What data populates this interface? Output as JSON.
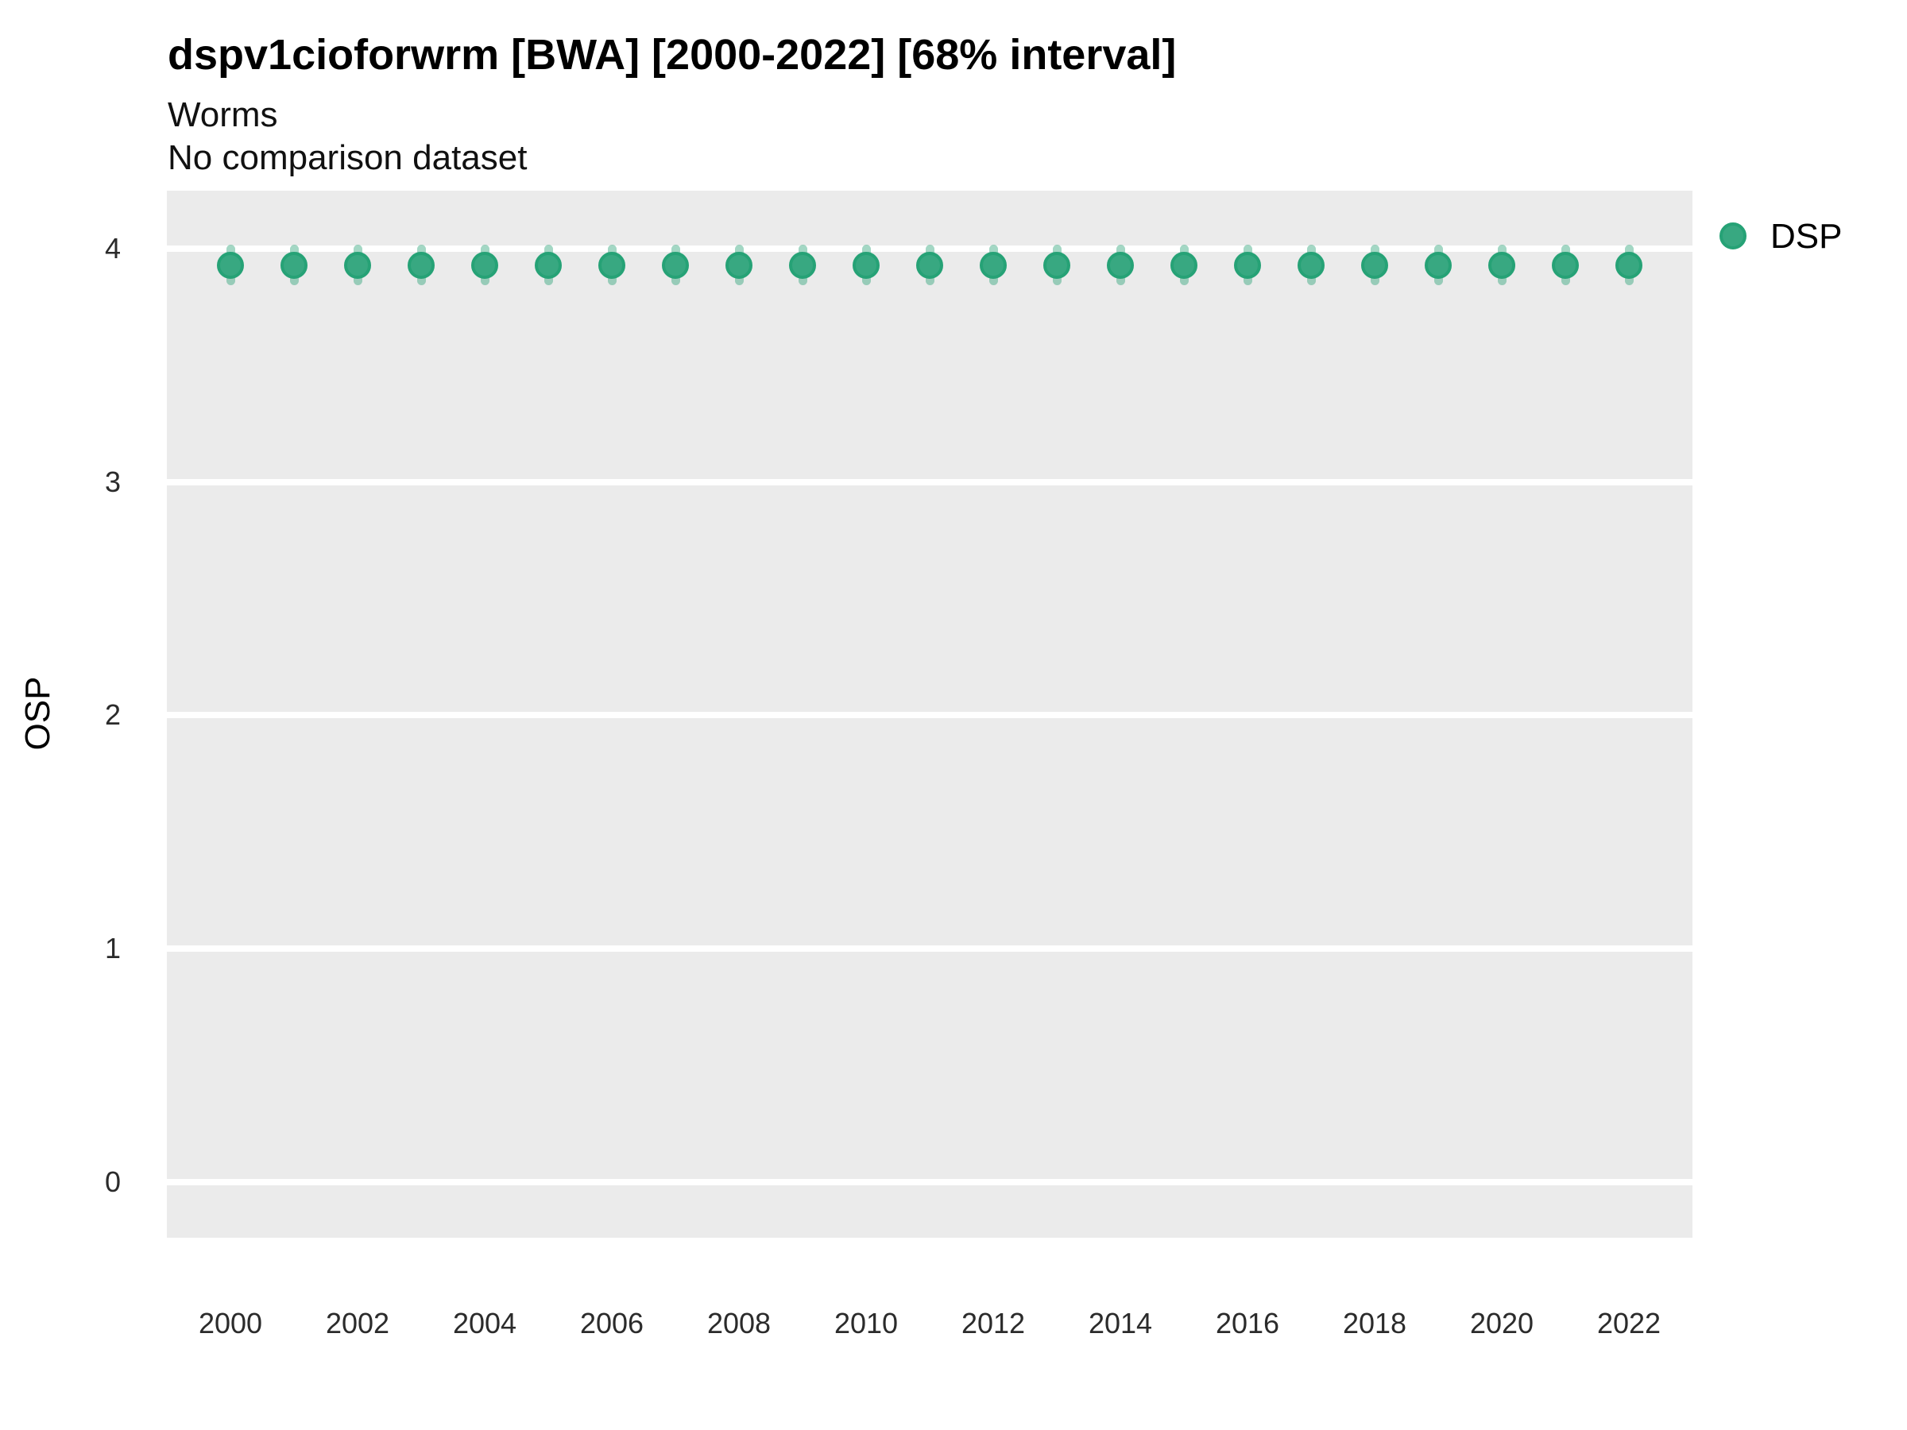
{
  "header": {
    "title": "dspv1cioforwrm [BWA] [2000-2022] [68% interval]",
    "subtitle": "Worms",
    "comparison_note": "No comparison dataset"
  },
  "chart_data": {
    "type": "scatter",
    "title": "dspv1cioforwrm [BWA] [2000-2022] [68% interval]",
    "subtitle": "Worms",
    "caption": "No comparison dataset",
    "xlabel": "",
    "ylabel": "OSP",
    "interval_label": "68% interval",
    "x": [
      2000,
      2001,
      2002,
      2003,
      2004,
      2005,
      2006,
      2007,
      2008,
      2009,
      2010,
      2011,
      2012,
      2013,
      2014,
      2015,
      2016,
      2017,
      2018,
      2019,
      2020,
      2021,
      2022
    ],
    "series": [
      {
        "name": "DSP",
        "values": [
          3.93,
          3.93,
          3.93,
          3.93,
          3.93,
          3.93,
          3.93,
          3.93,
          3.93,
          3.93,
          3.93,
          3.93,
          3.93,
          3.93,
          3.93,
          3.93,
          3.93,
          3.93,
          3.93,
          3.93,
          3.93,
          3.93,
          3.93
        ],
        "interval_low": [
          3.86,
          3.86,
          3.86,
          3.86,
          3.86,
          3.86,
          3.86,
          3.86,
          3.86,
          3.86,
          3.86,
          3.86,
          3.86,
          3.86,
          3.86,
          3.86,
          3.86,
          3.86,
          3.86,
          3.86,
          3.86,
          3.86,
          3.86
        ],
        "interval_high": [
          4.0,
          4.0,
          4.0,
          4.0,
          4.0,
          4.0,
          4.0,
          4.0,
          4.0,
          4.0,
          4.0,
          4.0,
          4.0,
          4.0,
          4.0,
          4.0,
          4.0,
          4.0,
          4.0,
          4.0,
          4.0,
          4.0,
          4.0
        ]
      }
    ],
    "x_ticks": [
      2000,
      2002,
      2004,
      2006,
      2008,
      2010,
      2012,
      2014,
      2016,
      2018,
      2020,
      2022
    ],
    "y_ticks": [
      4,
      3,
      2,
      1,
      0
    ],
    "xlim": [
      1999,
      2023
    ],
    "ylim": [
      -0.24,
      4.25
    ],
    "grid": "major-y-only",
    "legend_position": "right",
    "colors": {
      "point_fill": "#38a881",
      "point_stroke": "#26a276",
      "interval": "rgba(35, 160, 115, 0.42)",
      "panel_background": "#EBEBEB",
      "gridline": "#FFFFFF"
    }
  }
}
